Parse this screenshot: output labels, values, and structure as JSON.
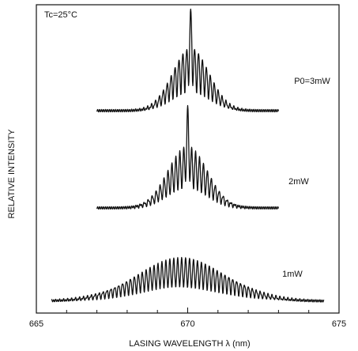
{
  "chart_data": {
    "type": "line",
    "xlabel": "LASING WAVELENGTH λ (nm)",
    "ylabel": "RELATIVE INTENSITY",
    "xlim": [
      665,
      675
    ],
    "x_ticks": [
      "665",
      "670",
      "675"
    ],
    "condition_label": "Tc=25°C",
    "y_ticks_shown": false,
    "grid": false,
    "series": [
      {
        "name": "P0=3mW",
        "x_range": [
          667,
          673
        ],
        "mode_spacing_nm": 0.13,
        "peak_wavelength_nm": 670.1,
        "envelope_width_nm": 0.6,
        "center_mode_height": 1.0,
        "relative_peak": 0.62
      },
      {
        "name": "2mW",
        "x_range": [
          667,
          673
        ],
        "mode_spacing_nm": 0.13,
        "peak_wavelength_nm": 670.0,
        "envelope_width_nm": 0.65,
        "center_mode_height": 1.0,
        "relative_peak": 0.6
      },
      {
        "name": "1mW",
        "x_range": [
          665.5,
          674.5
        ],
        "mode_spacing_nm": 0.13,
        "peak_wavelength_nm": 669.8,
        "envelope_width_nm": 1.5,
        "center_mode_height": 0.0,
        "relative_peak": 0.45
      }
    ]
  }
}
